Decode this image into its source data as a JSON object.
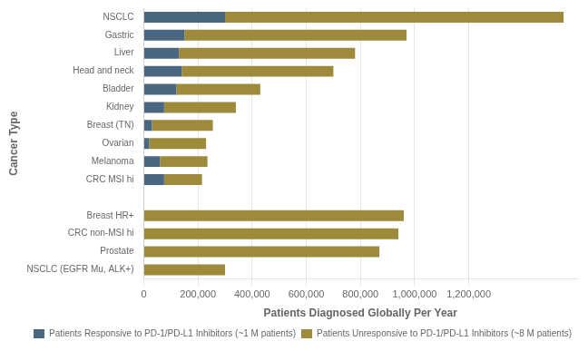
{
  "chart_data": {
    "type": "bar",
    "orientation": "horizontal",
    "stacked": true,
    "categories": [
      "NSCLC",
      "Gastric",
      "Liver",
      "Head and neck",
      "Bladder",
      "Kidney",
      "Breast (TN)",
      "Ovarian",
      "Melanoma",
      "CRC MSI hi",
      null,
      "Breast HR+",
      "CRC non-MSI hi",
      "Prostate",
      "NSCLC (EGFR Mu, ALK+)"
    ],
    "series": [
      {
        "name": "Patients Responsive to PD-1/PD-L1 Inhibitors (~1 M patients)",
        "color": "#4a6781",
        "values": [
          300000,
          150000,
          130000,
          140000,
          120000,
          75000,
          30000,
          20000,
          60000,
          75000,
          0,
          0,
          0,
          0,
          0
        ]
      },
      {
        "name": "Patients Unresponsive to PD-1/PD-L1 Inhibitors (~8 M patients)",
        "color": "#9e8a3b",
        "values": [
          1250000,
          820000,
          650000,
          560000,
          310000,
          265000,
          225000,
          210000,
          175000,
          140000,
          0,
          960000,
          940000,
          870000,
          300000
        ]
      }
    ],
    "x_label": "Patients Diagnosed Globally Per Year",
    "y_label": "Cancer Type",
    "xlim": [
      0,
      1600000
    ],
    "xticks": [
      0,
      {
        "value": 200000,
        "label": "200,000"
      },
      {
        "value": 400000,
        "label": "400,000"
      },
      {
        "value": 600000,
        "label": "600,000"
      },
      {
        "value": 800000,
        "label": "800,000"
      },
      {
        "value": 1000000,
        "label": "1,000,000"
      },
      {
        "value": 1200000,
        "label": "1,200,000"
      }
    ],
    "grid": true,
    "legend": "lower right"
  }
}
